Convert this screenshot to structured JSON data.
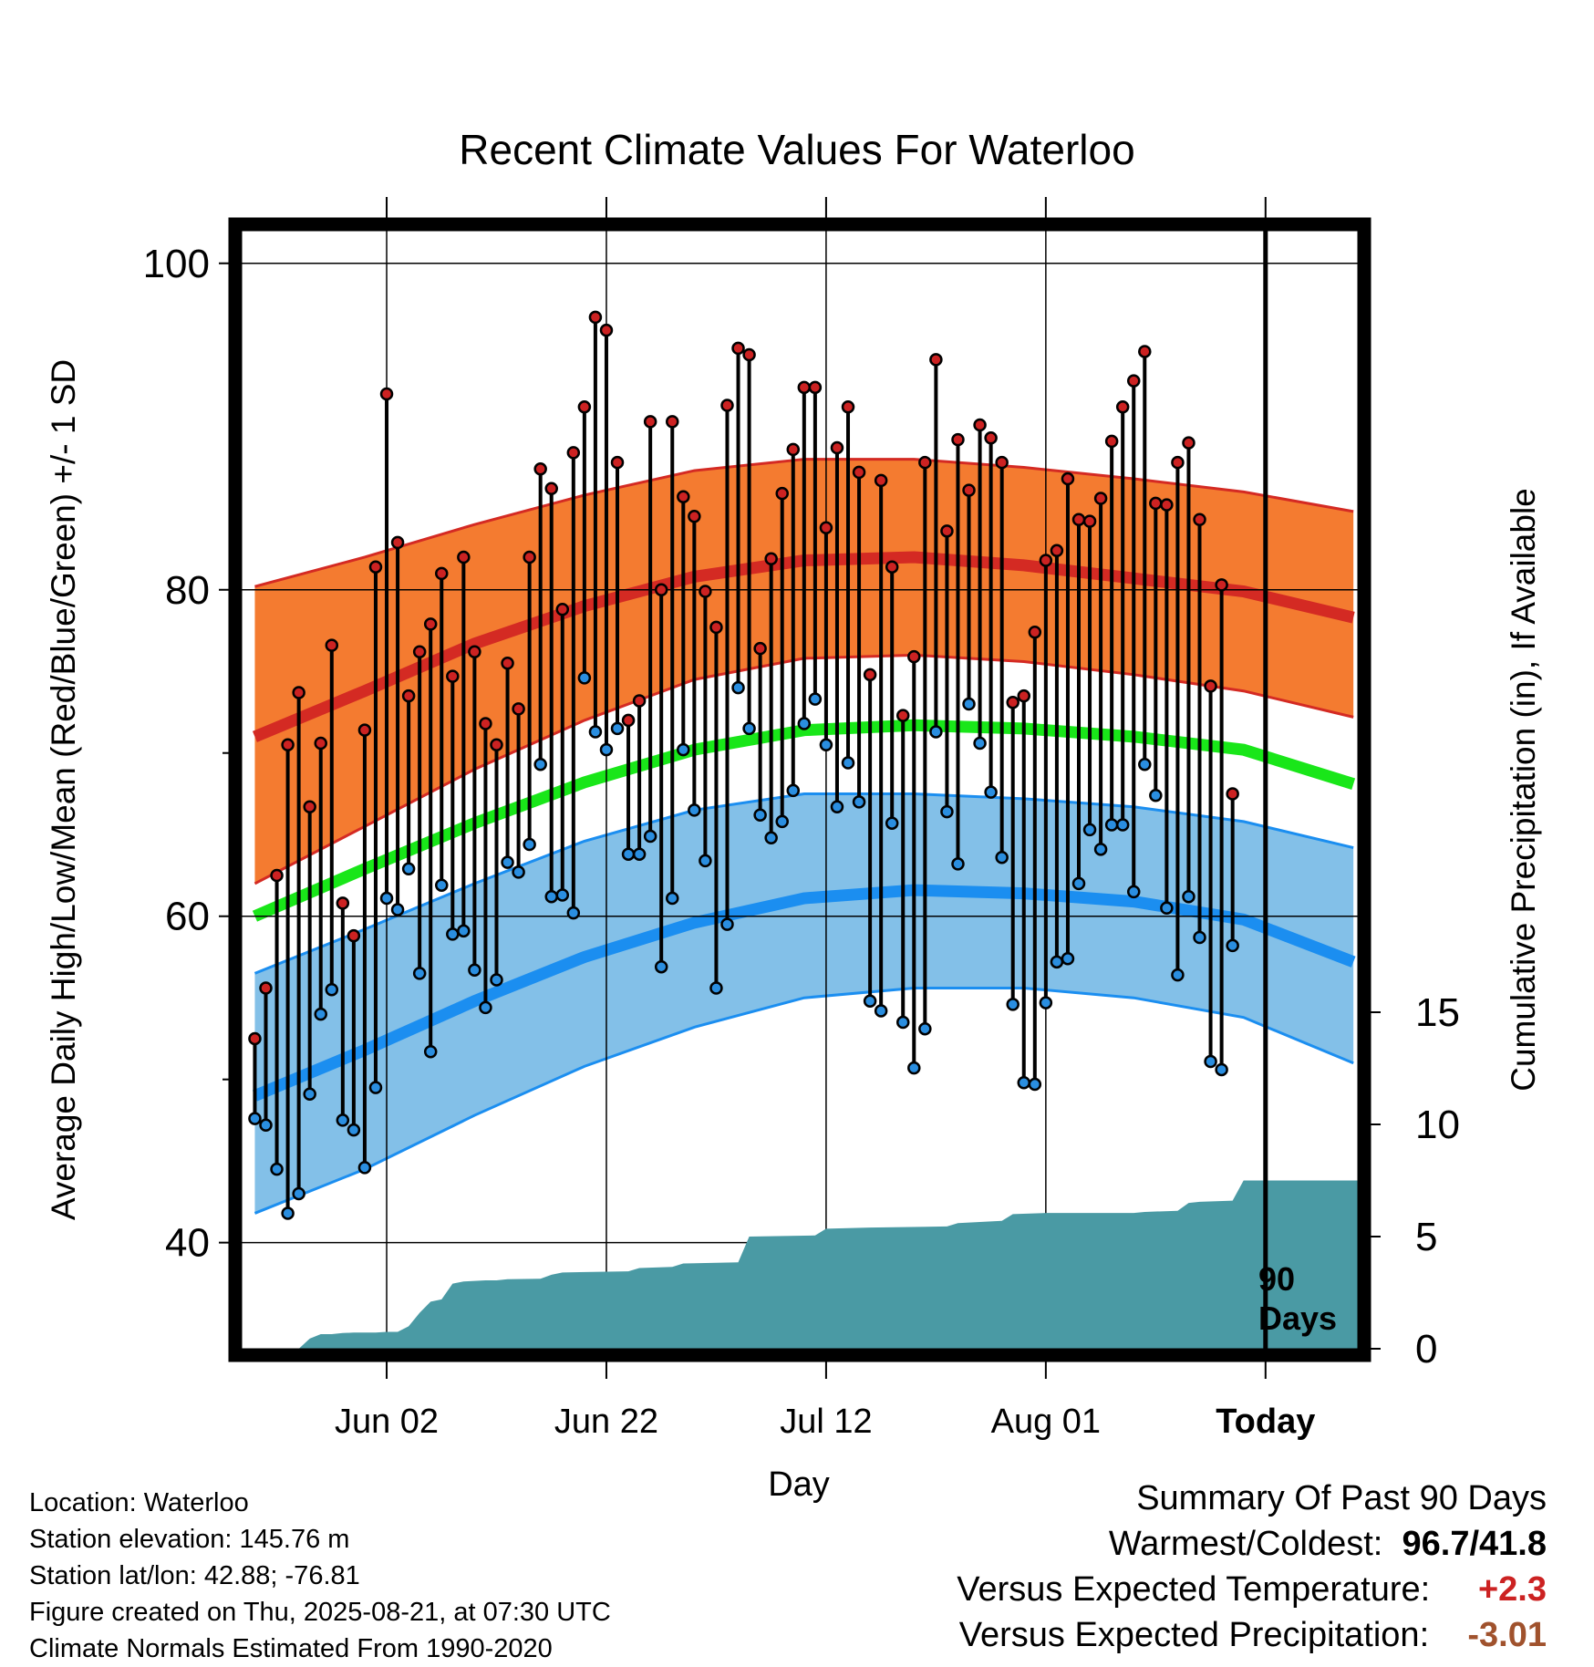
{
  "title": "Recent Climate Values For Waterloo",
  "y_axis_label": "Average Daily High/Low/Mean (Red/Blue/Green) +/- 1 SD",
  "y2_axis_label": "Cumulative Precipitation (in), If Available",
  "x_axis_label": "Day",
  "today_label": "Today",
  "days_label_1": "90",
  "days_label_2": "Days",
  "colors": {
    "high_band": "#f47b30",
    "high_line": "#d42a23",
    "mean_line": "#19e619",
    "low_band": "#83c0e8",
    "low_line": "#1b8ef0",
    "precip": "#4a9aa4",
    "high_point": "#cc2222",
    "low_point": "#2a8ee0"
  },
  "info": {
    "location": "Location: Waterloo",
    "elevation": "Station elevation: 145.76 m",
    "latlon": "Station lat/lon: 42.88; -76.81",
    "created": "Figure created on Thu, 2025-08-21, at 07:30 UTC",
    "normals": "Climate Normals Estimated From 1990-2020"
  },
  "summary": {
    "heading": "Summary Of Past 90 Days",
    "warmest_label": "Warmest/Coldest:",
    "warmest_value": "96.7",
    "slash": "/",
    "coldest_value": "41.8",
    "temp_label": "Versus Expected Temperature:",
    "temp_value": "+2.3",
    "precip_label": "Versus Expected Precipitation:",
    "precip_value": "-3.01"
  },
  "chart_data": {
    "type": "line",
    "x_unit": "days from 2025-05-21 (day 0 = May 21)",
    "xlim": [
      -1.2,
      100.4
    ],
    "ylim": [
      33.5,
      102
    ],
    "y_ticks": [
      40,
      60,
      80,
      100
    ],
    "y_minor_ticks": [
      70,
      50
    ],
    "y2_ticks": [
      0,
      5,
      10,
      15
    ],
    "y2_range_in": [
      0,
      30
    ],
    "x_ticks": [
      {
        "day": 12,
        "label": "Jun 02"
      },
      {
        "day": 32,
        "label": "Jun 22"
      },
      {
        "day": 52,
        "label": "Jul 12"
      },
      {
        "day": 72,
        "label": "Aug 01"
      },
      {
        "day": 92,
        "label": "Today"
      }
    ],
    "grid": true,
    "normals": {
      "days": [
        0,
        10,
        20,
        30,
        40,
        50,
        60,
        70,
        80,
        90,
        100
      ],
      "high_mean": [
        71.0,
        73.8,
        76.7,
        79.0,
        80.8,
        81.8,
        82.0,
        81.5,
        80.7,
        79.9,
        78.3
      ],
      "high_upper": [
        80.2,
        82.0,
        84.0,
        85.8,
        87.3,
        88.0,
        88.0,
        87.5,
        86.8,
        86.0,
        84.8
      ],
      "high_lower": [
        62.0,
        65.5,
        69.0,
        72.0,
        74.5,
        75.8,
        76.0,
        75.6,
        74.8,
        73.8,
        72.2
      ],
      "mean": [
        60.0,
        62.9,
        65.7,
        68.2,
        70.2,
        71.4,
        71.7,
        71.5,
        71.0,
        70.2,
        68.1
      ],
      "low_mean": [
        49.0,
        51.8,
        54.8,
        57.5,
        59.6,
        61.1,
        61.6,
        61.4,
        60.9,
        59.8,
        57.2
      ],
      "low_upper": [
        56.5,
        59.2,
        62.0,
        64.6,
        66.5,
        67.5,
        67.5,
        67.2,
        66.7,
        65.8,
        64.2
      ],
      "low_lower": [
        41.8,
        44.5,
        47.8,
        50.8,
        53.2,
        55.0,
        55.6,
        55.6,
        55.0,
        53.8,
        51.0
      ]
    },
    "daily": {
      "start_day": 0,
      "high": [
        52.5,
        55.6,
        62.5,
        70.5,
        73.7,
        66.7,
        70.6,
        76.6,
        60.8,
        58.8,
        71.4,
        81.4,
        92.0,
        82.9,
        73.5,
        76.2,
        77.9,
        81.0,
        74.7,
        82.0,
        76.2,
        71.8,
        70.5,
        75.5,
        72.7,
        82.0,
        87.4,
        86.2,
        78.8,
        88.4,
        91.2,
        96.7,
        95.9,
        87.8,
        72.0,
        73.2,
        90.3,
        80.0,
        90.3,
        85.7,
        84.5,
        79.9,
        77.7,
        91.3,
        94.8,
        94.4,
        76.4,
        81.9,
        85.9,
        88.6,
        92.4,
        92.4,
        83.8,
        88.7,
        91.2,
        87.2,
        74.8,
        86.7,
        81.4,
        72.3,
        75.9,
        87.8,
        94.1,
        83.6,
        89.2,
        86.1,
        90.1,
        89.3,
        87.8,
        73.1,
        73.5,
        77.4,
        81.8,
        82.4,
        86.8,
        84.3,
        84.2,
        85.6,
        89.1,
        91.2,
        92.8,
        94.6,
        85.3,
        85.2,
        87.8,
        89.0,
        84.3,
        74.1,
        80.3,
        67.5
      ],
      "low": [
        47.6,
        47.2,
        44.5,
        41.8,
        43.0,
        49.1,
        54.0,
        55.5,
        47.5,
        46.9,
        44.6,
        49.5,
        61.1,
        60.4,
        62.9,
        56.5,
        51.7,
        61.9,
        58.9,
        59.1,
        56.7,
        54.4,
        56.1,
        63.3,
        62.7,
        64.4,
        69.3,
        61.2,
        61.3,
        60.2,
        74.6,
        71.3,
        70.2,
        71.5,
        63.8,
        63.8,
        64.9,
        56.9,
        61.1,
        70.2,
        66.5,
        63.4,
        55.6,
        59.5,
        74.0,
        71.5,
        66.2,
        64.8,
        65.8,
        67.7,
        71.8,
        73.3,
        70.5,
        66.7,
        69.4,
        67.0,
        54.8,
        54.2,
        65.7,
        53.5,
        50.7,
        53.1,
        71.3,
        66.4,
        63.2,
        73.0,
        70.6,
        67.6,
        63.6,
        54.6,
        49.8,
        49.7,
        54.7,
        57.2,
        57.4,
        62.0,
        65.3,
        64.1,
        65.6,
        65.6,
        61.5,
        69.3,
        67.4,
        60.5,
        56.4,
        61.2,
        58.7,
        51.1,
        50.6,
        58.2
      ]
    },
    "precip_cumulative_in": [
      [
        4,
        0.0
      ],
      [
        5,
        0.45
      ],
      [
        6,
        0.65
      ],
      [
        7,
        0.65
      ],
      [
        8,
        0.7
      ],
      [
        9,
        0.72
      ],
      [
        11,
        0.72
      ],
      [
        12,
        0.75
      ],
      [
        13,
        0.75
      ],
      [
        14,
        1.0
      ],
      [
        15,
        1.6
      ],
      [
        16,
        2.1
      ],
      [
        17,
        2.2
      ],
      [
        18,
        2.9
      ],
      [
        19,
        3.0
      ],
      [
        21,
        3.05
      ],
      [
        22,
        3.05
      ],
      [
        23,
        3.1
      ],
      [
        26,
        3.12
      ],
      [
        27,
        3.3
      ],
      [
        28,
        3.4
      ],
      [
        34,
        3.45
      ],
      [
        35,
        3.6
      ],
      [
        38,
        3.65
      ],
      [
        39,
        3.8
      ],
      [
        44,
        3.85
      ],
      [
        45,
        5.0
      ],
      [
        51,
        5.05
      ],
      [
        52,
        5.35
      ],
      [
        56,
        5.4
      ],
      [
        63,
        5.45
      ],
      [
        64,
        5.6
      ],
      [
        66,
        5.65
      ],
      [
        68,
        5.7
      ],
      [
        69,
        6.0
      ],
      [
        72,
        6.05
      ],
      [
        80,
        6.05
      ],
      [
        81,
        6.1
      ],
      [
        84,
        6.15
      ],
      [
        85,
        6.5
      ],
      [
        86,
        6.55
      ],
      [
        89,
        6.6
      ],
      [
        90,
        7.5
      ],
      [
        100,
        7.5
      ]
    ]
  }
}
